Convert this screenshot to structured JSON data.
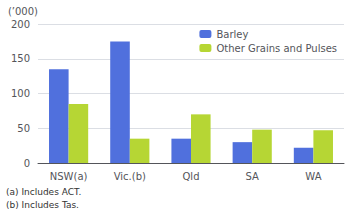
{
  "chart_data": {
    "type": "bar",
    "ylabel": "(’000)",
    "categories": [
      "NSW(a)",
      "Vic.(b)",
      "Qld",
      "SA",
      "WA"
    ],
    "series": [
      {
        "name": "Barley",
        "values": [
          135,
          175,
          35,
          30,
          22
        ]
      },
      {
        "name": "Other Grains and Pulses",
        "values": [
          85,
          35,
          70,
          48,
          47
        ]
      }
    ],
    "ylim": [
      0,
      200
    ],
    "yticks": [
      0,
      50,
      100,
      150,
      200
    ],
    "grid": true,
    "legend": "upper right",
    "annotations": [
      "(a) Includes ACT.",
      "(b) Includes Tas."
    ]
  }
}
